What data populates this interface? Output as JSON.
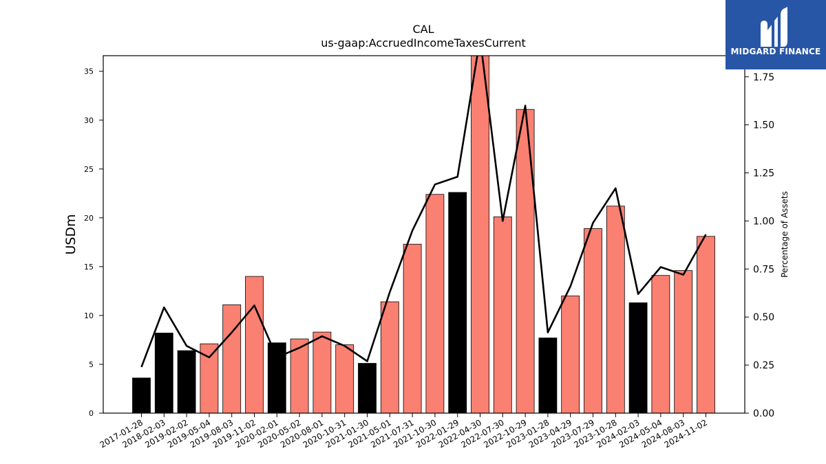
{
  "chart_data": {
    "type": "bar",
    "title": "CAL",
    "subtitle": "us-gaap:AccruedIncomeTaxesCurrent",
    "ylabel": "USDm",
    "y2label": "Percentage of Assets",
    "ylim": [
      0,
      36.6
    ],
    "y2lim": [
      0,
      1.86
    ],
    "yticks": [
      0,
      5,
      10,
      15,
      20,
      25,
      30,
      35
    ],
    "y2ticks": [
      "0.00",
      "0.25",
      "0.50",
      "0.75",
      "1.00",
      "1.25",
      "1.50",
      "1.75"
    ],
    "categories": [
      "2017-01-28",
      "2018-02-03",
      "2019-02-02",
      "2019-05-04",
      "2019-08-03",
      "2019-11-02",
      "2020-02-01",
      "2020-05-02",
      "2020-08-01",
      "2020-10-31",
      "2021-01-30",
      "2021-05-01",
      "2021-07-31",
      "2021-10-30",
      "2022-01-29",
      "2022-04-30",
      "2022-07-30",
      "2022-10-29",
      "2023-01-28",
      "2023-04-29",
      "2023-07-29",
      "2023-10-28",
      "2024-02-03",
      "2024-05-04",
      "2024-08-03",
      "2024-11-02"
    ],
    "series": [
      {
        "kind": "bar",
        "values": [
          3.6,
          8.2,
          6.4,
          7.1,
          11.1,
          14.0,
          7.2,
          7.6,
          8.3,
          7.0,
          5.1,
          11.4,
          17.3,
          22.4,
          22.6,
          36.6,
          20.1,
          31.1,
          7.7,
          12.0,
          18.9,
          21.2,
          11.3,
          14.1,
          14.6,
          18.1
        ],
        "colors": [
          "#000000",
          "#000000",
          "#000000",
          "#fa8072",
          "#fa8072",
          "#fa8072",
          "#000000",
          "#fa8072",
          "#fa8072",
          "#fa8072",
          "#000000",
          "#fa8072",
          "#fa8072",
          "#fa8072",
          "#000000",
          "#fa8072",
          "#fa8072",
          "#fa8072",
          "#000000",
          "#fa8072",
          "#fa8072",
          "#fa8072",
          "#000000",
          "#fa8072",
          "#fa8072",
          "#fa8072"
        ]
      },
      {
        "kind": "line",
        "axis": "right",
        "color": "#000000",
        "values": [
          0.24,
          0.55,
          0.35,
          0.29,
          0.42,
          0.56,
          0.29,
          0.34,
          0.4,
          0.35,
          0.27,
          0.63,
          0.95,
          1.19,
          1.23,
          1.95,
          1.0,
          1.6,
          0.42,
          0.66,
          0.99,
          1.17,
          0.62,
          0.76,
          0.72,
          0.93
        ]
      }
    ]
  },
  "logo": {
    "text": "MIDGARD FINANCE",
    "icon": "midgard-m-icon"
  }
}
